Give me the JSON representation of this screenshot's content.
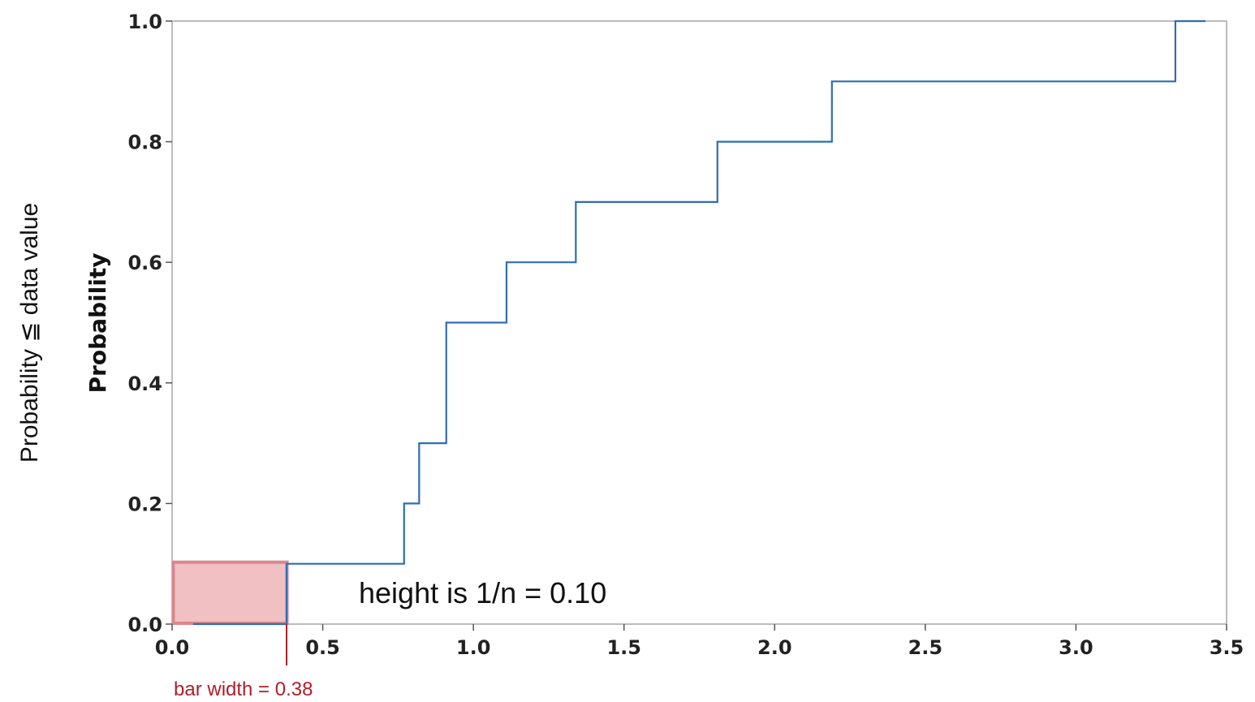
{
  "chart_data": {
    "type": "line",
    "subtype": "empirical-cdf-step",
    "outer_ylabel": "Probability ≦ data value",
    "ylabel": "Probability",
    "xlabel": "",
    "xlim": [
      0.0,
      3.5
    ],
    "ylim": [
      0.0,
      1.0
    ],
    "x_ticks": [
      0.0,
      0.5,
      1.0,
      1.5,
      2.0,
      2.5,
      3.0,
      3.5
    ],
    "x_tick_labels": [
      "0.0",
      "0.5",
      "1.0",
      "1.5",
      "2.0",
      "2.5",
      "3.0",
      "3.5"
    ],
    "y_ticks": [
      0.0,
      0.2,
      0.4,
      0.6,
      0.8,
      1.0
    ],
    "y_tick_labels": [
      "0.0",
      "0.2",
      "0.4",
      "0.6",
      "0.8",
      "1.0"
    ],
    "grid": false,
    "line_color": "#2e6db4",
    "series": [
      {
        "step_x": [
          0.38,
          0.77,
          0.82,
          0.91,
          1.11,
          1.34,
          1.81,
          2.19,
          3.33
        ],
        "step_y": [
          0.1,
          0.2,
          0.3,
          0.5,
          0.6,
          0.7,
          0.8,
          0.9,
          1.0
        ],
        "x_end": 3.43
      }
    ],
    "highlight_bar": {
      "x0": 0.0,
      "x1": 0.38,
      "height": 0.1,
      "fill": "#f0c0c3",
      "stroke": "#d9888c"
    },
    "annotations": {
      "height_note": "height is 1/n = 0.10",
      "width_note": "bar width = 0.38",
      "width_note_color": "#b01e28"
    }
  }
}
